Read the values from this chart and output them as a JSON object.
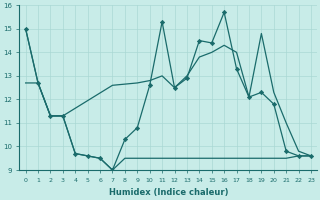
{
  "xlabel": "Humidex (Indice chaleur)",
  "bg_color": "#c8ece8",
  "line_color": "#1a6b6b",
  "grid_color": "#aad8d4",
  "xlim": [
    -0.5,
    23.5
  ],
  "ylim": [
    9,
    16
  ],
  "yticks": [
    9,
    10,
    11,
    12,
    13,
    14,
    15,
    16
  ],
  "xticks": [
    0,
    1,
    2,
    3,
    4,
    5,
    6,
    7,
    8,
    9,
    10,
    11,
    12,
    13,
    14,
    15,
    16,
    17,
    18,
    19,
    20,
    21,
    22,
    23
  ],
  "line_zigzag_x": [
    0,
    1,
    2,
    3,
    4,
    5,
    6,
    7,
    8,
    9,
    10,
    11,
    12,
    13,
    14,
    15,
    16,
    17,
    18,
    19,
    20,
    21,
    22,
    23
  ],
  "line_zigzag_y": [
    15.0,
    12.7,
    11.3,
    11.3,
    9.7,
    9.6,
    9.5,
    9.0,
    10.3,
    10.8,
    12.6,
    15.3,
    12.5,
    12.9,
    14.5,
    14.4,
    15.7,
    13.3,
    12.1,
    12.3,
    11.8,
    9.8,
    9.6,
    9.6
  ],
  "line_trend_x": [
    0,
    1,
    2,
    3,
    7,
    9,
    10,
    11,
    12,
    13,
    14,
    15,
    16,
    17,
    18,
    19,
    20,
    21,
    22,
    23
  ],
  "line_trend_y": [
    12.7,
    12.7,
    11.3,
    11.3,
    12.6,
    12.7,
    12.8,
    13.0,
    12.5,
    13.0,
    13.8,
    14.0,
    14.3,
    14.0,
    12.1,
    14.8,
    12.3,
    11.0,
    9.8,
    9.6
  ],
  "line_flat_x": [
    0,
    1,
    2,
    3,
    4,
    5,
    6,
    7,
    8,
    9,
    10,
    11,
    12,
    13,
    14,
    15,
    16,
    17,
    18,
    19,
    20,
    21,
    22,
    23
  ],
  "line_flat_y": [
    15.0,
    12.7,
    11.3,
    11.3,
    9.7,
    9.6,
    9.5,
    9.0,
    9.5,
    9.5,
    9.5,
    9.5,
    9.5,
    9.5,
    9.5,
    9.5,
    9.5,
    9.5,
    9.5,
    9.5,
    9.5,
    9.5,
    9.6,
    9.6
  ]
}
